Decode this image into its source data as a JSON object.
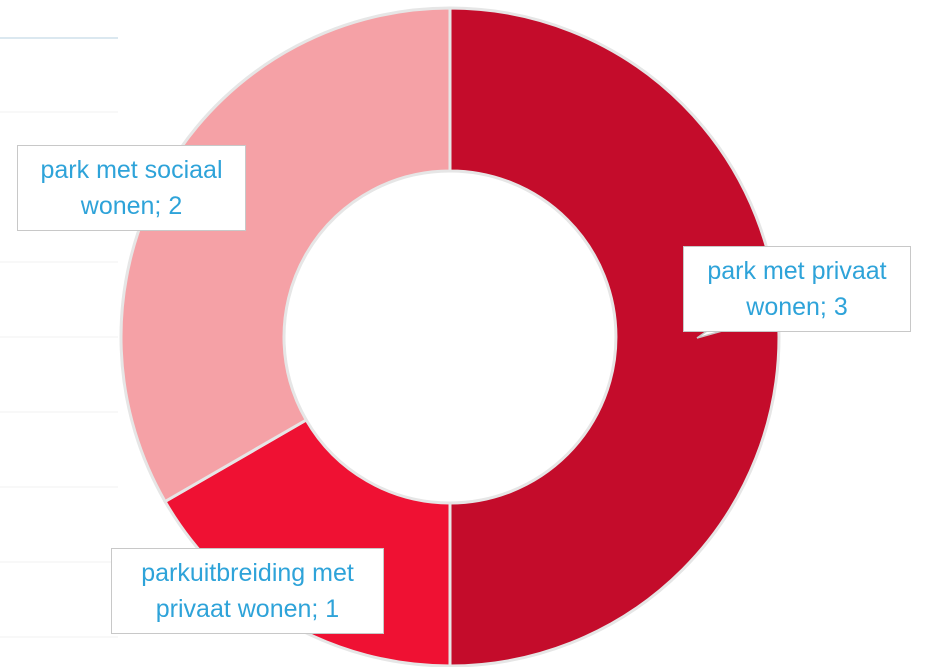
{
  "chart_data": {
    "type": "pie",
    "variant": "donut",
    "slices": [
      {
        "label": "park met privaat wonen",
        "value": 3,
        "color": "#c40c2b",
        "line1": "park met privaat",
        "line2": "wonen; 3"
      },
      {
        "label": "parkuitbreiding met privaat wonen",
        "value": 1,
        "color": "#ef1133",
        "line1": "parkuitbreiding met",
        "line2": "privaat wonen; 1"
      },
      {
        "label": "park met sociaal wonen",
        "value": 2,
        "color": "#f5a1a6",
        "line1": "park met sociaal",
        "line2": "wonen; 2"
      }
    ],
    "separator_color": "#e6e6e6",
    "label_color": "#2ea3d9"
  }
}
